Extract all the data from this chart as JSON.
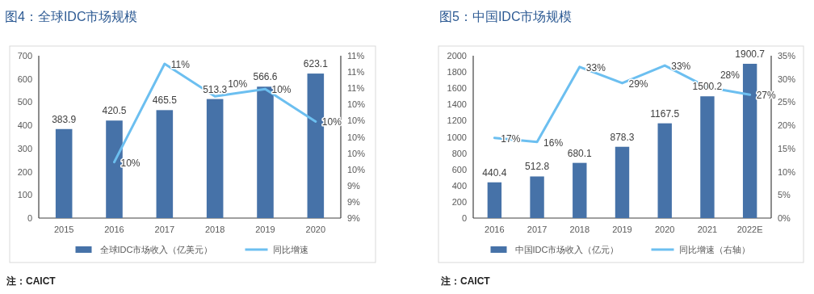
{
  "chart_data": [
    {
      "type": "bar",
      "title": "图4：全球IDC市场规模",
      "categories": [
        "2015",
        "2016",
        "2017",
        "2018",
        "2019",
        "2020"
      ],
      "series": [
        {
          "name": "全球IDC市场收入（亿美元）",
          "type": "bar",
          "color": "#4672a8",
          "values": [
            383.9,
            420.5,
            465.5,
            513.3,
            566.6,
            623.1
          ],
          "value_labels": [
            "383.9",
            "420.5",
            "465.5",
            "513.3",
            "566.6",
            "623.1"
          ]
        },
        {
          "name": "同比增速",
          "type": "line",
          "axis": "y2",
          "color": "#6cbff0",
          "values": [
            null,
            9.59,
            10.8,
            10.4,
            10.49,
            10.09
          ],
          "value_labels": [
            null,
            "10%",
            "11%",
            "10%",
            "10%",
            "10%"
          ]
        }
      ],
      "ylim": [
        0,
        700
      ],
      "yticks": [
        0,
        100,
        200,
        300,
        400,
        500,
        600,
        700
      ],
      "y2lim": [
        8.9,
        10.9
      ],
      "y2ticks": [
        {
          "value": 8.9,
          "label": "9%"
        },
        {
          "value": 9.1,
          "label": "9%"
        },
        {
          "value": 9.3,
          "label": "9%"
        },
        {
          "value": 9.5,
          "label": "10%"
        },
        {
          "value": 9.7,
          "label": "10%"
        },
        {
          "value": 9.9,
          "label": "10%"
        },
        {
          "value": 10.1,
          "label": "10%"
        },
        {
          "value": 10.3,
          "label": "10%"
        },
        {
          "value": 10.5,
          "label": "11%"
        },
        {
          "value": 10.7,
          "label": "11%"
        },
        {
          "value": 10.9,
          "label": "11%"
        }
      ],
      "legend": "bottom",
      "annotations": [
        "注：CAICT"
      ]
    },
    {
      "type": "bar",
      "title": "图5：中国IDC市场规模",
      "categories": [
        "2016",
        "2017",
        "2018",
        "2019",
        "2020",
        "2021",
        "2022E"
      ],
      "series": [
        {
          "name": "中国IDC市场收入（亿元）",
          "type": "bar",
          "color": "#4672a8",
          "values": [
            440.4,
            512.8,
            680.1,
            878.3,
            1167.5,
            1500.2,
            1900.7
          ],
          "value_labels": [
            "440.4",
            "512.8",
            "680.1",
            "878.3",
            "1167.5",
            "1500.2",
            "1900.7"
          ]
        },
        {
          "name": "同比增速（右轴）",
          "type": "line",
          "axis": "y2",
          "color": "#6cbff0",
          "values": [
            17.3,
            16.4,
            32.6,
            29.1,
            32.9,
            28.2,
            26.6
          ],
          "value_labels": [
            "17%",
            "16%",
            "33%",
            "29%",
            "33%",
            "28%",
            "27%"
          ]
        }
      ],
      "ylim": [
        0,
        2000
      ],
      "yticks": [
        0,
        200,
        400,
        600,
        800,
        1000,
        1200,
        1400,
        1600,
        1800,
        2000
      ],
      "y2lim": [
        0,
        35
      ],
      "y2ticks": [
        {
          "value": 0,
          "label": "0%"
        },
        {
          "value": 5,
          "label": "5%"
        },
        {
          "value": 10,
          "label": "10%"
        },
        {
          "value": 15,
          "label": "15%"
        },
        {
          "value": 20,
          "label": "20%"
        },
        {
          "value": 25,
          "label": "25%"
        },
        {
          "value": 30,
          "label": "30%"
        },
        {
          "value": 35,
          "label": "35%"
        }
      ],
      "legend": "bottom",
      "annotations": [
        "注：CAICT"
      ]
    }
  ]
}
